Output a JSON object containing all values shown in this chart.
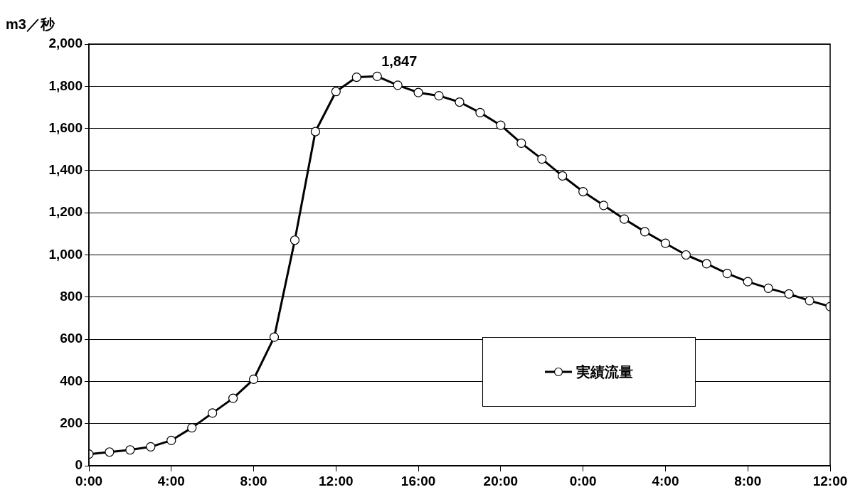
{
  "chart_data": {
    "type": "line",
    "ylabel": "m3／秒",
    "x": [
      "--08-16T00:00",
      "--08-16T01:00",
      "--08-16T02:00",
      "--08-16T03:00",
      "--08-16T04:00",
      "--08-16T05:00",
      "--08-16T06:00",
      "--08-16T07:00",
      "--08-16T08:00",
      "--08-16T09:00",
      "--08-16T10:00",
      "--08-16T11:00",
      "--08-16T12:00",
      "--08-16T13:00",
      "--08-16T14:00",
      "--08-16T15:00",
      "--08-16T16:00",
      "--08-16T17:00",
      "--08-16T18:00",
      "--08-16T19:00",
      "--08-16T20:00",
      "--08-16T21:00",
      "--08-16T22:00",
      "--08-16T23:00",
      "--08-17T00:00",
      "--08-17T01:00",
      "--08-17T02:00",
      "--08-17T03:00",
      "--08-17T04:00",
      "--08-17T05:00",
      "--08-17T06:00",
      "--08-17T07:00",
      "--08-17T08:00",
      "--08-17T09:00",
      "--08-17T10:00",
      "--08-17T11:00",
      "--08-17T12:00"
    ],
    "series": [
      {
        "name": "実績流量",
        "color": "#000000",
        "values": [
          55,
          65,
          75,
          90,
          120,
          180,
          250,
          320,
          410,
          610,
          1070,
          1585,
          1775,
          1843,
          1847,
          1805,
          1770,
          1755,
          1725,
          1675,
          1615,
          1530,
          1455,
          1375,
          1300,
          1235,
          1170,
          1110,
          1055,
          1000,
          958,
          912,
          873,
          842,
          815,
          783,
          755
        ]
      }
    ],
    "xlim": [
      "--08-16T00:00",
      "--08-17T12:00"
    ],
    "xticks": [
      {
        "value": "--08-16T00:00",
        "label": "0:00"
      },
      {
        "value": "--08-16T04:00",
        "label": "4:00"
      },
      {
        "value": "--08-16T08:00",
        "label": "8:00"
      },
      {
        "value": "--08-16T12:00",
        "label": "12:00"
      },
      {
        "value": "--08-16T16:00",
        "label": "16:00"
      },
      {
        "value": "--08-16T20:00",
        "label": "20:00"
      },
      {
        "value": "--08-17T00:00",
        "label": "0:00"
      },
      {
        "value": "--08-17T04:00",
        "label": "4:00"
      },
      {
        "value": "--08-17T08:00",
        "label": "8:00"
      },
      {
        "value": "--08-17T12:00",
        "label": "12:00"
      }
    ],
    "ylim": [
      0,
      2000
    ],
    "yticks": [
      {
        "value": 0,
        "label": "0"
      },
      {
        "value": 200,
        "label": "200"
      },
      {
        "value": 400,
        "label": "400"
      },
      {
        "value": 600,
        "label": "600"
      },
      {
        "value": 800,
        "label": "800"
      },
      {
        "value": 1000,
        "label": "1,000"
      },
      {
        "value": 1200,
        "label": "1,200"
      },
      {
        "value": 1400,
        "label": "1,400"
      },
      {
        "value": 1600,
        "label": "1,600"
      },
      {
        "value": 1800,
        "label": "1,800"
      },
      {
        "value": 2000,
        "label": "2,000"
      }
    ],
    "annotations": [
      {
        "text": "1,847",
        "x": "--08-16T14:00",
        "y": 1847
      }
    ],
    "grid": "y",
    "legend": "bottom right",
    "marker": "circle",
    "line_style": "solid"
  }
}
